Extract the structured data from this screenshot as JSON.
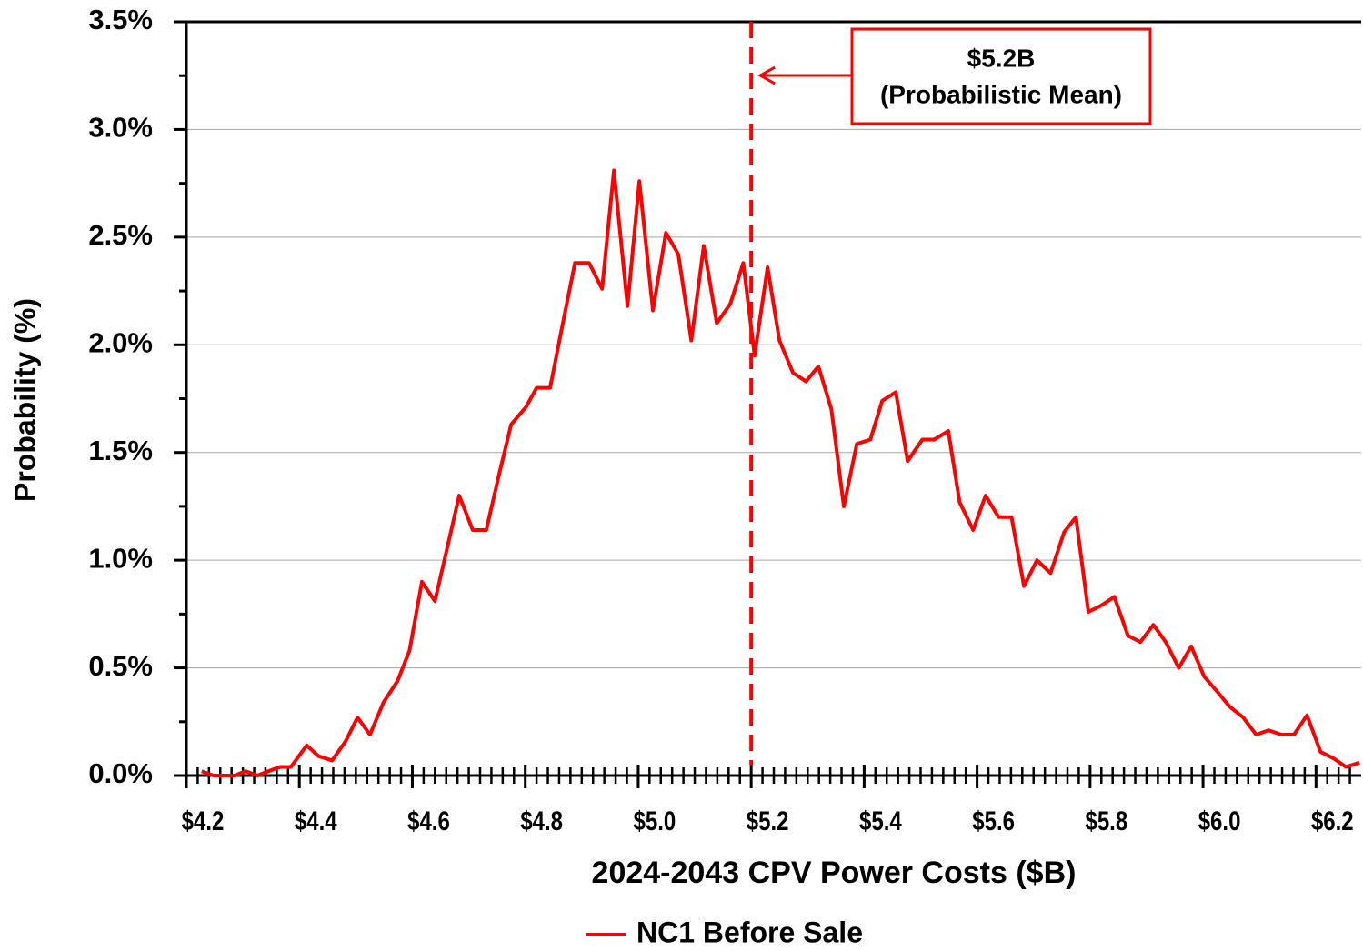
{
  "chart_data": {
    "type": "line",
    "x_axis_label": "2024-2043 CPV Power Costs  ($B)",
    "y_axis_label": "Probability  (%)",
    "xlim": [
      4.2,
      6.28
    ],
    "ylim": [
      0,
      3.5
    ],
    "xticks": [
      {
        "value": 4.2,
        "label": "$4.2"
      },
      {
        "value": 4.4,
        "label": "$4.4"
      },
      {
        "value": 4.6,
        "label": "$4.6"
      },
      {
        "value": 4.8,
        "label": "$4.8"
      },
      {
        "value": 5.0,
        "label": "$5.0"
      },
      {
        "value": 5.2,
        "label": "$5.2"
      },
      {
        "value": 5.4,
        "label": "$5.4"
      },
      {
        "value": 5.6,
        "label": "$5.6"
      },
      {
        "value": 5.8,
        "label": "$5.8"
      },
      {
        "value": 6.0,
        "label": "$6.0"
      },
      {
        "value": 6.2,
        "label": "$6.2"
      }
    ],
    "yticks": [
      {
        "value": 0,
        "label": "0.0%"
      },
      {
        "value": 0.5,
        "label": "0.5%"
      },
      {
        "value": 1.0,
        "label": "1.0%"
      },
      {
        "value": 1.5,
        "label": "1.5%"
      },
      {
        "value": 2.0,
        "label": "2.0%"
      },
      {
        "value": 2.5,
        "label": "2.5%"
      },
      {
        "value": 3.0,
        "label": "3.0%"
      },
      {
        "value": 3.5,
        "label": "3.5%"
      }
    ],
    "y_minor_ticks": [
      0.25,
      0.75,
      1.25,
      1.75,
      2.25,
      2.75,
      3.25
    ],
    "x_minor_ticks": [
      4.22,
      4.24,
      4.26,
      4.28,
      4.3,
      4.32,
      4.34,
      4.36,
      4.38,
      4.4,
      4.42,
      4.44,
      4.46,
      4.48,
      4.5,
      4.52,
      4.54,
      4.56,
      4.58,
      4.6,
      4.62,
      4.64,
      4.66,
      4.68,
      4.7,
      4.72,
      4.74,
      4.76,
      4.78,
      4.8,
      4.82,
      4.84,
      4.86,
      4.88,
      4.9,
      4.92,
      4.94,
      4.96,
      4.98,
      5.0,
      5.02,
      5.04,
      5.06,
      5.08,
      5.1,
      5.12,
      5.14,
      5.16,
      5.18,
      5.2,
      5.22,
      5.24,
      5.26,
      5.28,
      5.3,
      5.32,
      5.34,
      5.36,
      5.38,
      5.4,
      5.42,
      5.44,
      5.46,
      5.48,
      5.5,
      5.52,
      5.54,
      5.56,
      5.58,
      5.6,
      5.62,
      5.64,
      5.66,
      5.68,
      5.7,
      5.72,
      5.74,
      5.76,
      5.78,
      5.8,
      5.82,
      5.84,
      5.86,
      5.88,
      5.9,
      5.92,
      5.94,
      5.96,
      5.98,
      6.0,
      6.02,
      6.04,
      6.06,
      6.08,
      6.1,
      6.12,
      6.14,
      6.16,
      6.18,
      6.2,
      6.22,
      6.24,
      6.26
    ],
    "grid": true,
    "x": [
      4.227,
      4.248,
      4.269,
      4.285,
      4.305,
      4.326,
      4.345,
      4.366,
      4.385,
      4.413,
      4.434,
      4.458,
      4.482,
      4.503,
      4.525,
      4.549,
      4.574,
      4.595,
      4.617,
      4.64,
      4.662,
      4.683,
      4.707,
      4.731,
      4.752,
      4.775,
      4.801,
      4.82,
      4.844,
      4.865,
      4.888,
      4.913,
      4.936,
      4.957,
      4.981,
      5.002,
      5.026,
      5.049,
      5.071,
      5.094,
      5.116,
      5.139,
      5.163,
      5.186,
      5.206,
      5.229,
      5.25,
      5.274,
      5.297,
      5.319,
      5.342,
      5.364,
      5.387,
      5.411,
      5.432,
      5.456,
      5.477,
      5.503,
      5.524,
      5.549,
      5.569,
      5.593,
      5.615,
      5.638,
      5.661,
      5.683,
      5.706,
      5.73,
      5.754,
      5.775,
      5.797,
      5.82,
      5.843,
      5.867,
      5.889,
      5.912,
      5.934,
      5.957,
      5.979,
      6.002,
      6.025,
      6.047,
      6.071,
      6.094,
      6.116,
      6.139,
      6.161,
      6.184,
      6.208,
      6.231,
      6.253,
      6.277
    ],
    "series": [
      {
        "name": "NC1 Before Sale",
        "color": "#ff0000",
        "values": [
          0.02,
          0,
          0,
          0,
          0.02,
          0,
          0.02,
          0.04,
          0.04,
          0.14,
          0.09,
          0.07,
          0.16,
          0.27,
          0.19,
          0.34,
          0.44,
          0.58,
          0.9,
          0.81,
          1.06,
          1.3,
          1.14,
          1.14,
          1.38,
          1.63,
          1.71,
          1.8,
          1.8,
          2.08,
          2.38,
          2.38,
          2.26,
          2.81,
          2.18,
          2.76,
          2.16,
          2.52,
          2.42,
          2.02,
          2.46,
          2.1,
          2.19,
          2.38,
          1.95,
          2.36,
          2.02,
          1.87,
          1.83,
          1.9,
          1.7,
          1.25,
          1.54,
          1.56,
          1.74,
          1.78,
          1.46,
          1.56,
          1.56,
          1.6,
          1.27,
          1.14,
          1.3,
          1.2,
          1.2,
          0.88,
          1.0,
          0.94,
          1.13,
          1.2,
          0.76,
          0.79,
          0.83,
          0.65,
          0.62,
          0.7,
          0.62,
          0.5,
          0.6,
          0.46,
          0.39,
          0.32,
          0.27,
          0.19,
          0.21,
          0.19,
          0.19,
          0.28,
          0.11,
          0.08,
          0.04,
          0.06
        ]
      }
    ],
    "mean_line": {
      "value": 5.2,
      "color": "#ff0000",
      "annotation": [
        "$5.2B",
        "(Probabilistic Mean)"
      ]
    },
    "legend": "bottom"
  }
}
